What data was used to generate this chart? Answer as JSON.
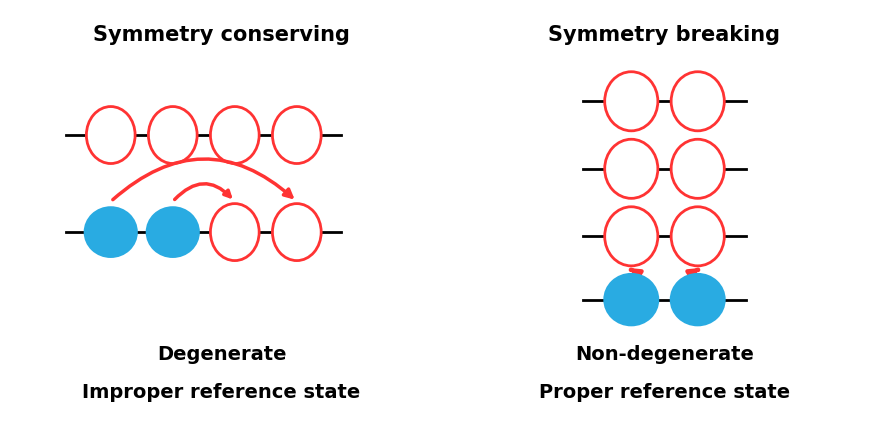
{
  "title_left": "Symmetry conserving",
  "title_right": "Symmetry breaking",
  "label_left_1": "Degenerate",
  "label_left_2": "Improper reference state",
  "label_right_1": "Non-degenerate",
  "label_right_2": "Proper reference state",
  "red_color": "#FF3333",
  "blue_color": "#29ABE2",
  "black_color": "#000000",
  "white_color": "#FFFFFF",
  "bg_color": "#FFFFFF",
  "title_fontsize": 15,
  "label_fontsize": 14
}
